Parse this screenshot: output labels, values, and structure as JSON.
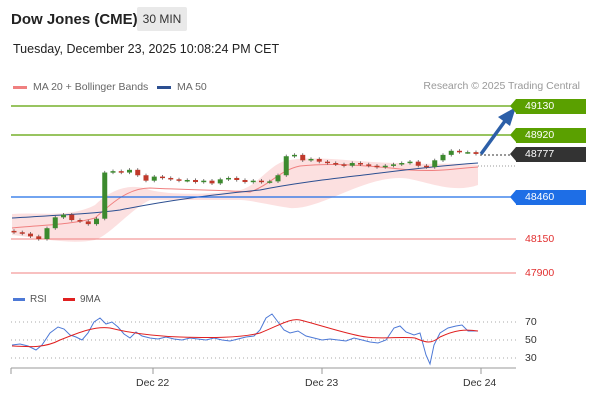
{
  "header": {
    "title": "Dow Jones (CME)",
    "timeframe": "30 MIN"
  },
  "datetime": "Tuesday, December 23, 2025 10:08:24 PM CET",
  "legend": [
    {
      "label": "MA 20 + Bollinger Bands",
      "color": "#f08080"
    },
    {
      "label": "MA 50",
      "color": "#2c4f91"
    }
  ],
  "credit": "Research © 2025 Trading Central",
  "levels": [
    {
      "value": "49130",
      "role": "resistance",
      "color": "#5aa000"
    },
    {
      "value": "48920",
      "role": "resistance",
      "color": "#5aa000"
    },
    {
      "value": "48777",
      "role": "last",
      "color": "#333333"
    },
    {
      "value": "48460",
      "role": "pivot",
      "color": "#1e6ee6"
    },
    {
      "value": "48150",
      "role": "support",
      "color": "#e23030"
    },
    {
      "value": "47900",
      "role": "support",
      "color": "#e23030"
    }
  ],
  "rsi": {
    "legend": [
      {
        "label": "RSI",
        "color": "#4d79d6"
      },
      {
        "label": "9MA",
        "color": "#e02020"
      }
    ],
    "ticks": [
      "70",
      "50",
      "30"
    ]
  },
  "xaxis": [
    "Dec 22",
    "Dec 23",
    "Dec 24"
  ],
  "chart_data": {
    "type": "candlestick",
    "y_range": [
      47900,
      49130
    ],
    "price_series_close": [
      48200,
      48190,
      48170,
      48150,
      48230,
      48310,
      48330,
      48290,
      48280,
      48260,
      48300,
      48640,
      48650,
      48640,
      48660,
      48620,
      48580,
      48610,
      48600,
      48590,
      48580,
      48585,
      48570,
      48580,
      48560,
      48590,
      48600,
      48585,
      48570,
      48580,
      48570,
      48575,
      48620,
      48760,
      48770,
      48730,
      48740,
      48720,
      48710,
      48700,
      48690,
      48710,
      48700,
      48690,
      48680,
      48690,
      48700,
      48710,
      48720,
      48690,
      48680,
      48730,
      48770,
      48800,
      48790,
      48790,
      48777
    ],
    "arrow_target": "49130"
  }
}
